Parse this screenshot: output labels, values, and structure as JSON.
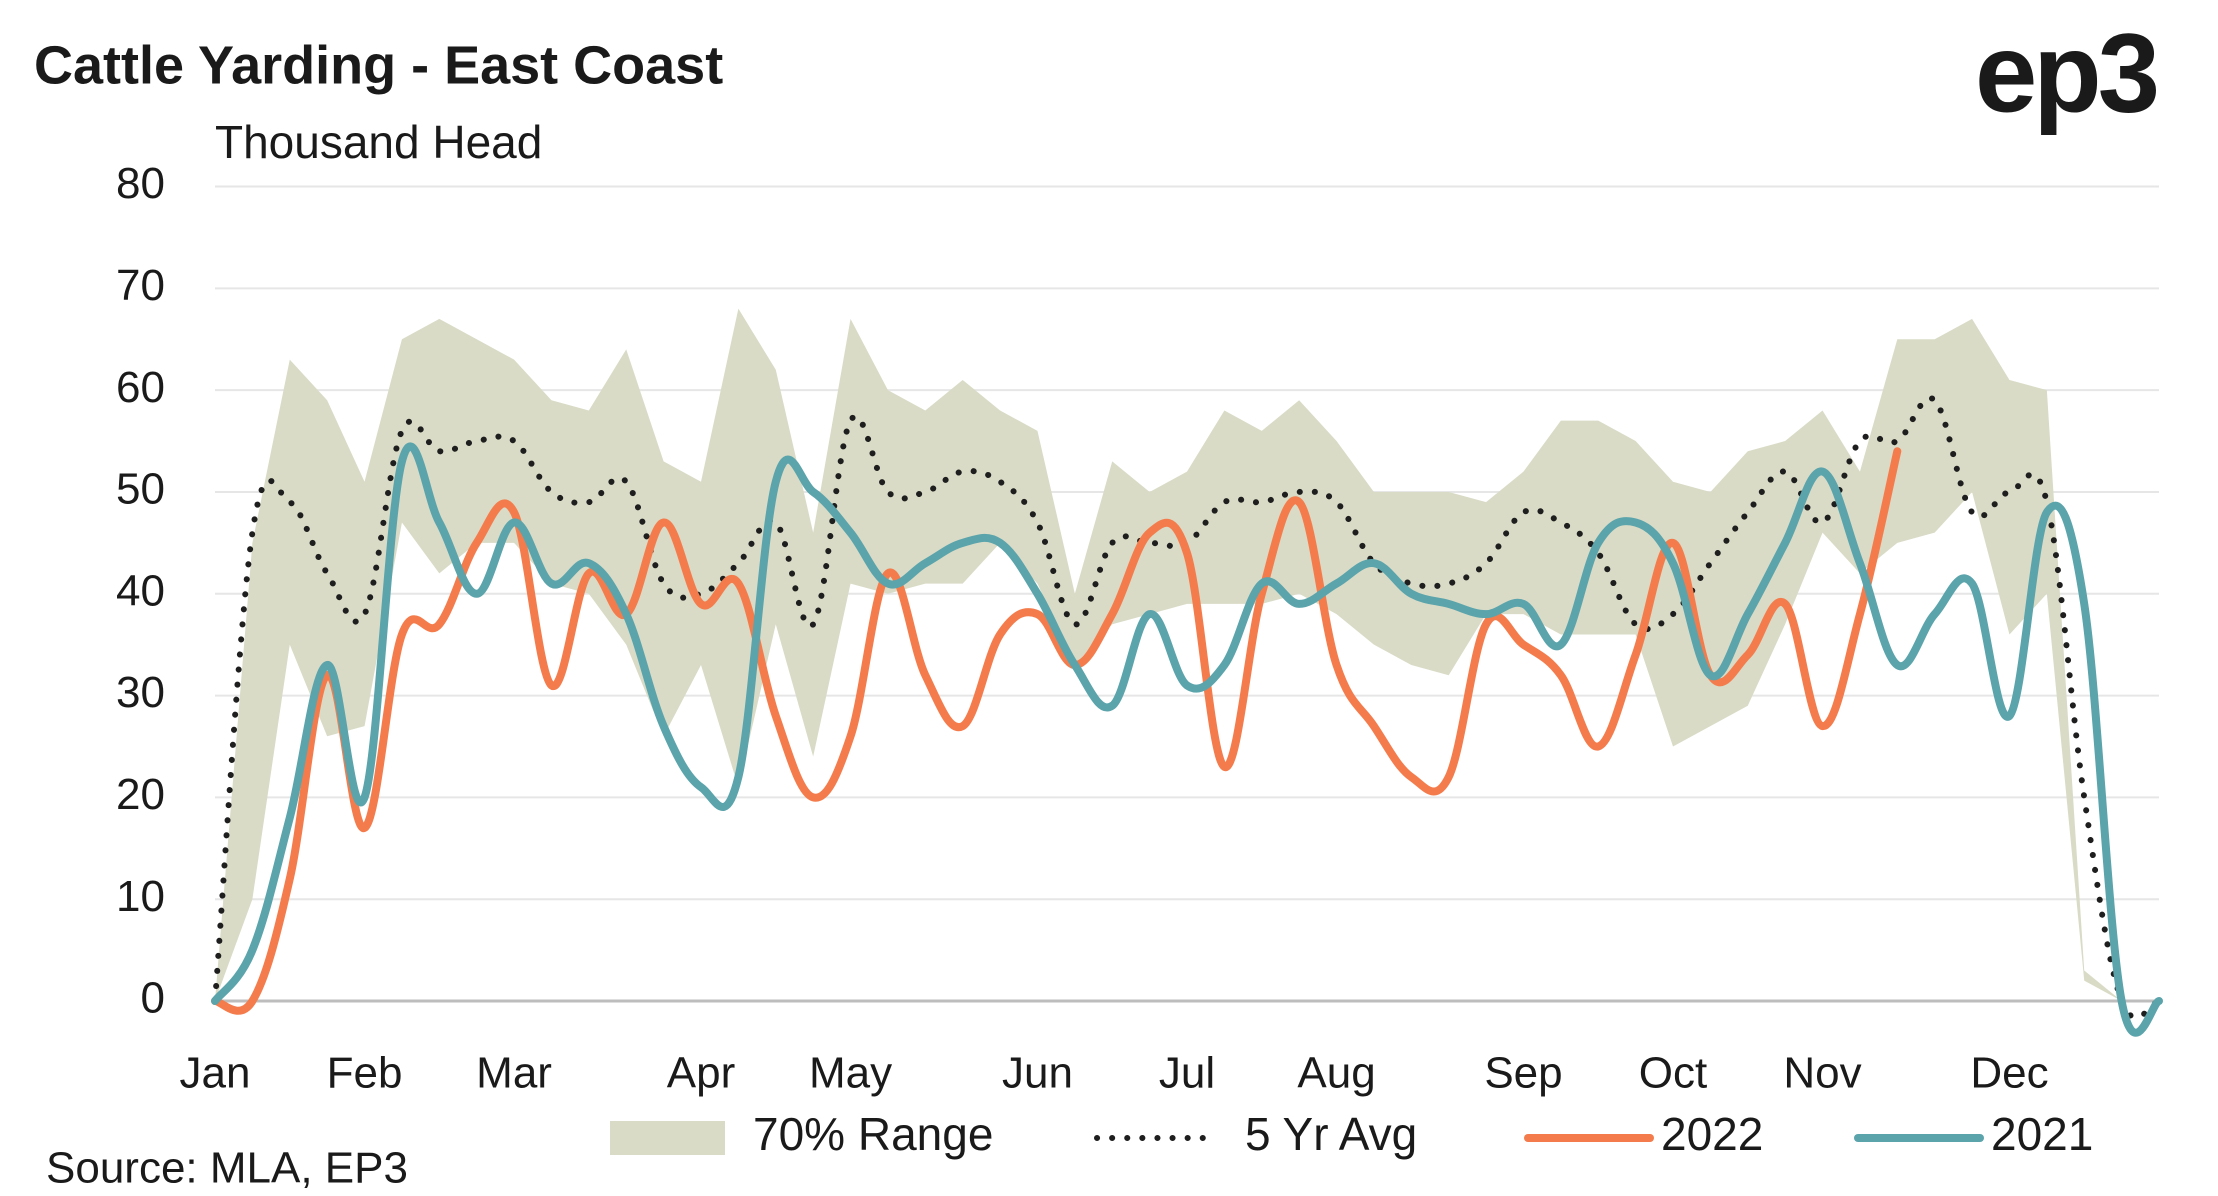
{
  "chart_data": {
    "type": "line",
    "title": "Cattle Yarding - East Coast",
    "subtitle": "Thousand Head",
    "source": "Source: MLA, EP3",
    "logo": "ep3",
    "categories": [
      "Jan",
      null,
      null,
      null,
      "Feb",
      null,
      null,
      null,
      "Mar",
      null,
      null,
      null,
      null,
      "Apr",
      null,
      null,
      null,
      "May",
      null,
      null,
      null,
      null,
      "Jun",
      null,
      null,
      null,
      "Jul",
      null,
      null,
      null,
      "Aug",
      null,
      null,
      null,
      null,
      "Sep",
      null,
      null,
      null,
      "Oct",
      null,
      null,
      null,
      "Nov",
      null,
      null,
      null,
      null,
      "Dec",
      null,
      null,
      null,
      null
    ],
    "ylim": [
      0,
      80
    ],
    "yticks": [
      0,
      10,
      20,
      30,
      40,
      50,
      60,
      70,
      80
    ],
    "grid": true,
    "series": [
      {
        "name": "70% Range",
        "color": "#d9dbc6",
        "lower": [
          0,
          10,
          35,
          26,
          27,
          47,
          42,
          45,
          45,
          41,
          40,
          35,
          26,
          33,
          21,
          37,
          24,
          41,
          40,
          41,
          41,
          45,
          41,
          33,
          37,
          38,
          39,
          39,
          39,
          40,
          38,
          35,
          33,
          32,
          38,
          38,
          36,
          36,
          36,
          25,
          27,
          29,
          37,
          46,
          42,
          45,
          46,
          50,
          36,
          40,
          2,
          0,
          0
        ],
        "upper": [
          0,
          45,
          63,
          59,
          51,
          65,
          67,
          65,
          63,
          59,
          58,
          64,
          53,
          51,
          68,
          62,
          46,
          67,
          60,
          58,
          61,
          58,
          56,
          40,
          53,
          50,
          52,
          58,
          56,
          59,
          55,
          50,
          50,
          50,
          49,
          52,
          57,
          57,
          55,
          51,
          50,
          54,
          55,
          58,
          52,
          65,
          65,
          67,
          61,
          60,
          3,
          0,
          0
        ]
      },
      {
        "name": "5 Yr Avg",
        "color": "#1e1e1e",
        "style": "dotted",
        "values": [
          0,
          46,
          49,
          42,
          38,
          56,
          54,
          55,
          55,
          50,
          49,
          51,
          41,
          40,
          43,
          47,
          37,
          57,
          50,
          50,
          52,
          51,
          47,
          37,
          45,
          45,
          45,
          49,
          49,
          50,
          49,
          43,
          41,
          41,
          43,
          48,
          47,
          44,
          37,
          38,
          43,
          48,
          52,
          47,
          55,
          55,
          59,
          48,
          50,
          49,
          20,
          0,
          0
        ]
      },
      {
        "name": "2022",
        "color": "#f47c4c",
        "style": "solid",
        "values": [
          0,
          0,
          12,
          32,
          17,
          36,
          37,
          45,
          48,
          31,
          42,
          38,
          47,
          39,
          41,
          28,
          20,
          26,
          42,
          32,
          27,
          36,
          38,
          33,
          38,
          46,
          44,
          23,
          40,
          49,
          33,
          27,
          22,
          22,
          37,
          35,
          32,
          25,
          34,
          45,
          32,
          34,
          39,
          27,
          38,
          54,
          null,
          null,
          null,
          null,
          null,
          null,
          null
        ]
      },
      {
        "name": "2021",
        "color": "#5ba4ab",
        "style": "solid",
        "values": [
          0,
          5,
          18,
          33,
          20,
          53,
          47,
          40,
          47,
          41,
          43,
          38,
          27,
          21,
          22,
          51,
          50,
          46,
          41,
          43,
          45,
          45,
          40,
          33,
          29,
          38,
          31,
          33,
          41,
          39,
          41,
          43,
          40,
          39,
          38,
          39,
          35,
          45,
          47,
          43,
          32,
          38,
          45,
          52,
          43,
          33,
          38,
          41,
          28,
          48,
          39,
          0,
          0
        ]
      }
    ]
  }
}
